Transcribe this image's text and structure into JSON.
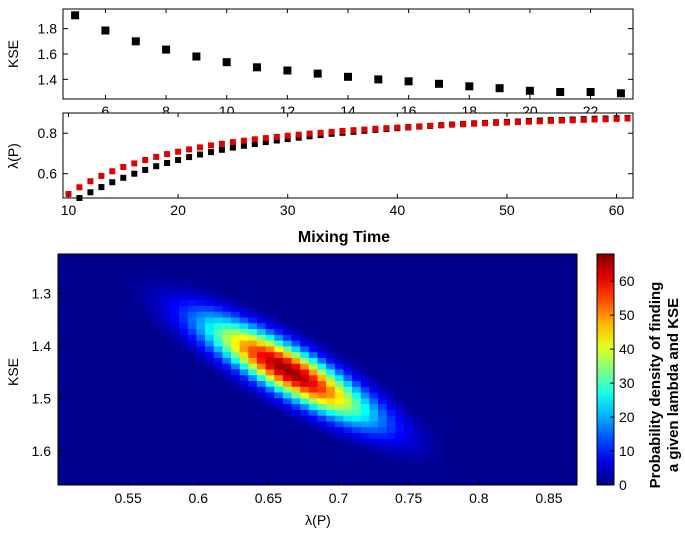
{
  "chart_data": [
    {
      "type": "scatter",
      "xlabel": "",
      "ylabel": "KSE",
      "xlim": [
        4.6,
        23.4
      ],
      "ylim": [
        1.245,
        1.955
      ],
      "xticks": [
        "6",
        "8",
        "10",
        "12",
        "14",
        "16",
        "18",
        "20",
        "22"
      ],
      "yticks": [
        "1.4",
        "1.6",
        "1.8"
      ],
      "series": [
        {
          "color": "#000000",
          "marker": "square",
          "x": [
            5,
            6,
            7,
            8,
            9,
            10,
            11,
            12,
            13,
            14,
            15,
            16,
            17,
            18,
            19,
            20,
            21,
            22,
            23
          ],
          "y": [
            1.905,
            1.785,
            1.7,
            1.635,
            1.58,
            1.535,
            1.495,
            1.47,
            1.445,
            1.42,
            1.4,
            1.385,
            1.365,
            1.345,
            1.33,
            1.31,
            1.3,
            1.3,
            1.29
          ]
        }
      ]
    },
    {
      "type": "scatter",
      "xlabel": "Mixing Time",
      "ylabel": "λ(P)",
      "xlim": [
        9.5,
        61.5
      ],
      "ylim": [
        0.48,
        0.9
      ],
      "xticks": [
        "10",
        "20",
        "30",
        "40",
        "50",
        "60"
      ],
      "yticks": [
        "0.6",
        "0.8"
      ],
      "series": [
        {
          "color": "#000000",
          "marker": "square",
          "x": [
            11.0,
            12.0,
            13.0,
            14.0,
            15.0,
            16.0,
            17.0,
            18.0,
            19.0,
            20.0,
            21.0,
            22.0,
            23.0,
            24.0,
            25.0,
            26.0,
            27.0,
            28.0,
            29.0,
            30.0,
            31.0,
            32.0,
            33.0,
            34.0,
            35.0,
            36.0,
            37.0,
            38.0,
            39.0,
            40.0,
            41.0,
            42.0,
            43.0,
            44.0,
            45.0,
            46.0,
            47.0,
            48.0,
            49.0,
            50.0,
            51.0,
            52.0,
            53.0,
            54.0,
            55.0,
            56.0,
            57.0,
            58.0,
            59.0,
            60.0,
            61.0
          ],
          "y": [
            0.48,
            0.508,
            0.534,
            0.558,
            0.58,
            0.6,
            0.619,
            0.637,
            0.653,
            0.668,
            0.682,
            0.695,
            0.707,
            0.718,
            0.729,
            0.738,
            0.747,
            0.756,
            0.764,
            0.771,
            0.778,
            0.785,
            0.791,
            0.797,
            0.802,
            0.807,
            0.812,
            0.817,
            0.821,
            0.825,
            0.829,
            0.833,
            0.836,
            0.84,
            0.843,
            0.846,
            0.849,
            0.851,
            0.854,
            0.856,
            0.858,
            0.861,
            0.863,
            0.865,
            0.866,
            0.868,
            0.87,
            0.872,
            0.873,
            0.875,
            0.876
          ]
        },
        {
          "color": "#e00000",
          "marker": "square",
          "x": [
            10.0,
            11.0,
            12.0,
            13.0,
            14.0,
            15.0,
            16.0,
            17.0,
            18.0,
            19.0,
            20.0,
            21.0,
            22.0,
            23.0,
            24.0,
            25.0,
            26.0,
            27.0,
            28.0,
            29.0,
            30.0,
            31.0,
            32.0,
            33.0,
            34.0,
            35.0,
            36.0,
            37.0,
            38.0,
            39.0,
            40.0,
            41.0,
            42.0,
            43.0,
            44.0,
            45.0,
            46.0,
            47.0,
            48.0,
            49.0,
            50.0,
            51.0,
            52.0,
            53.0,
            54.0,
            55.0,
            56.0,
            57.0,
            58.0,
            59.0,
            60.0,
            61.0
          ],
          "y": [
            0.5,
            0.533,
            0.563,
            0.589,
            0.612,
            0.633,
            0.651,
            0.668,
            0.683,
            0.697,
            0.709,
            0.72,
            0.73,
            0.74,
            0.748,
            0.756,
            0.763,
            0.77,
            0.776,
            0.782,
            0.788,
            0.793,
            0.798,
            0.802,
            0.807,
            0.811,
            0.815,
            0.818,
            0.822,
            0.825,
            0.828,
            0.831,
            0.834,
            0.837,
            0.839,
            0.842,
            0.844,
            0.847,
            0.849,
            0.851,
            0.853,
            0.855,
            0.857,
            0.859,
            0.861,
            0.863,
            0.864,
            0.866,
            0.868,
            0.869,
            0.871,
            0.873
          ]
        }
      ]
    },
    {
      "type": "heatmap",
      "xlabel": "λ(P)",
      "ylabel": "KSE",
      "xlim": [
        0.5,
        0.87
      ],
      "ylim": [
        1.225,
        1.665
      ],
      "y_reversed": true,
      "xticks": [
        "0.55",
        "0.6",
        "0.65",
        "0.7",
        "0.75",
        "0.8",
        "0.85"
      ],
      "yticks": [
        "1.3",
        "1.4",
        "1.5",
        "1.6"
      ],
      "colormap": "jet",
      "colorbar": {
        "label_lines": [
          "Probability density of finding",
          "a given lambda and KSE"
        ],
        "range": [
          0,
          68
        ],
        "ticks": [
          "0",
          "10",
          "20",
          "30",
          "40",
          "50",
          "60"
        ]
      },
      "gaussian": {
        "peak": 67,
        "mean_lambda": 0.664,
        "mean_kse": 1.447,
        "sd_lambda": 0.04,
        "sd_kse": 0.065,
        "correlation": 0.86
      }
    }
  ]
}
